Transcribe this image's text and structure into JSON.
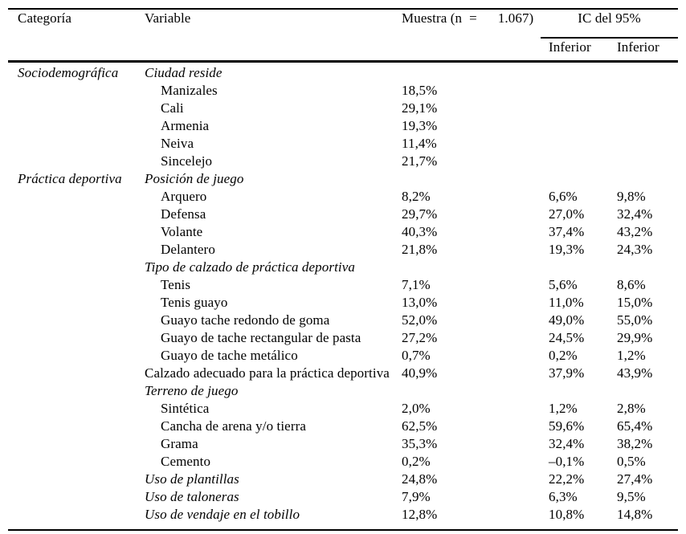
{
  "table": {
    "header": {
      "categoria": "Categoría",
      "variable": "Variable",
      "muestra_parts": [
        "Muestra (n",
        "=",
        "1.067)"
      ],
      "ic": "IC del 95%",
      "sub_lower": "Inferior",
      "sub_upper": "Inferior"
    },
    "rows": [
      {
        "category": "Sociodemográfica",
        "variable": "Ciudad reside",
        "style": "group",
        "muestra": "",
        "ci_lower": "",
        "ci_upper": ""
      },
      {
        "category": "",
        "variable": "Manizales",
        "style": "item",
        "muestra": "18,5%",
        "ci_lower": "",
        "ci_upper": ""
      },
      {
        "category": "",
        "variable": "Cali",
        "style": "item",
        "muestra": "29,1%",
        "ci_lower": "",
        "ci_upper": ""
      },
      {
        "category": "",
        "variable": "Armenia",
        "style": "item",
        "muestra": "19,3%",
        "ci_lower": "",
        "ci_upper": ""
      },
      {
        "category": "",
        "variable": "Neiva",
        "style": "item",
        "muestra": "11,4%",
        "ci_lower": "",
        "ci_upper": ""
      },
      {
        "category": "",
        "variable": "Sincelejo",
        "style": "item",
        "muestra": "21,7%",
        "ci_lower": "",
        "ci_upper": ""
      },
      {
        "category": "Práctica deportiva",
        "variable": "Posición de juego",
        "style": "group",
        "muestra": "",
        "ci_lower": "",
        "ci_upper": ""
      },
      {
        "category": "",
        "variable": "Arquero",
        "style": "item",
        "muestra": "8,2%",
        "ci_lower": "6,6%",
        "ci_upper": "9,8%"
      },
      {
        "category": "",
        "variable": "Defensa",
        "style": "item",
        "muestra": "29,7%",
        "ci_lower": "27,0%",
        "ci_upper": "32,4%"
      },
      {
        "category": "",
        "variable": "Volante",
        "style": "item",
        "muestra": "40,3%",
        "ci_lower": "37,4%",
        "ci_upper": "43,2%"
      },
      {
        "category": "",
        "variable": "Delantero",
        "style": "item",
        "muestra": "21,8%",
        "ci_lower": "19,3%",
        "ci_upper": "24,3%"
      },
      {
        "category": "",
        "variable": "Tipo de calzado de práctica deportiva",
        "style": "group",
        "muestra": "",
        "ci_lower": "",
        "ci_upper": ""
      },
      {
        "category": "",
        "variable": "Tenis",
        "style": "item",
        "muestra": "7,1%",
        "ci_lower": "5,6%",
        "ci_upper": "8,6%"
      },
      {
        "category": "",
        "variable": "Tenis guayo",
        "style": "item",
        "muestra": "13,0%",
        "ci_lower": "11,0%",
        "ci_upper": "15,0%"
      },
      {
        "category": "",
        "variable": "Guayo tache redondo de goma",
        "style": "item",
        "muestra": "52,0%",
        "ci_lower": "49,0%",
        "ci_upper": "55,0%"
      },
      {
        "category": "",
        "variable": "Guayo de tache rectangular de pasta",
        "style": "item",
        "muestra": "27,2%",
        "ci_lower": "24,5%",
        "ci_upper": "29,9%"
      },
      {
        "category": "",
        "variable": "Guayo de tache metálico",
        "style": "item",
        "muestra": "0,7%",
        "ci_lower": "0,2%",
        "ci_upper": "1,2%"
      },
      {
        "category": "",
        "variable": "Calzado adecuado para la práctica deportiva",
        "style": "plain",
        "muestra": "40,9%",
        "ci_lower": "37,9%",
        "ci_upper": "43,9%"
      },
      {
        "category": "",
        "variable": "Terreno de juego",
        "style": "group",
        "muestra": "",
        "ci_lower": "",
        "ci_upper": ""
      },
      {
        "category": "",
        "variable": "Sintética",
        "style": "item",
        "muestra": "2,0%",
        "ci_lower": "1,2%",
        "ci_upper": "2,8%"
      },
      {
        "category": "",
        "variable": "Cancha de arena y/o tierra",
        "style": "item",
        "muestra": "62,5%",
        "ci_lower": "59,6%",
        "ci_upper": "65,4%"
      },
      {
        "category": "",
        "variable": "Grama",
        "style": "item",
        "muestra": "35,3%",
        "ci_lower": "32,4%",
        "ci_upper": "38,2%"
      },
      {
        "category": "",
        "variable": "Cemento",
        "style": "item",
        "muestra": "0,2%",
        "ci_lower": "–0,1%",
        "ci_upper": "0,5%"
      },
      {
        "category": "",
        "variable": "Uso de plantillas",
        "style": "group",
        "muestra": "24,8%",
        "ci_lower": "22,2%",
        "ci_upper": "27,4%"
      },
      {
        "category": "",
        "variable": "Uso de taloneras",
        "style": "group",
        "muestra": "7,9%",
        "ci_lower": "6,3%",
        "ci_upper": "9,5%"
      },
      {
        "category": "",
        "variable": "Uso de vendaje en el tobillo",
        "style": "group",
        "muestra": "12,8%",
        "ci_lower": "10,8%",
        "ci_upper": "14,8%"
      }
    ]
  }
}
